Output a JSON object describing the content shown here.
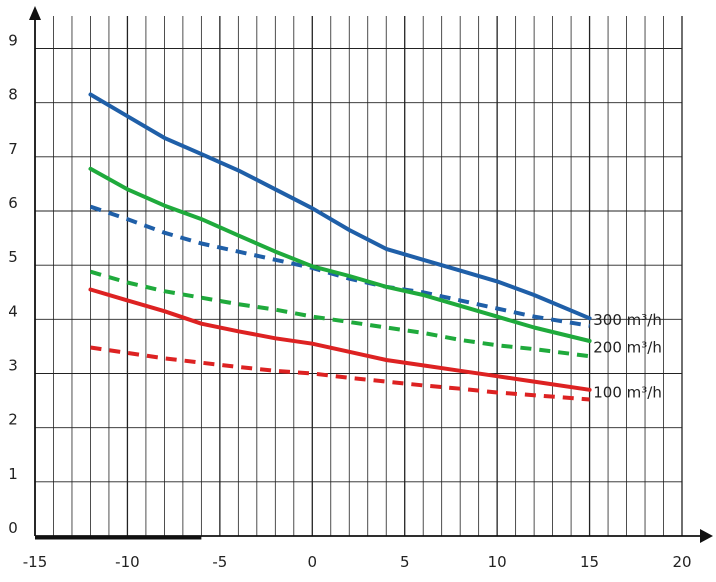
{
  "chart_data": {
    "type": "line",
    "title": "",
    "xlabel": "",
    "ylabel": "",
    "xlim": [
      -15,
      20
    ],
    "ylim": [
      0,
      9.6
    ],
    "x_ticks": [
      -15,
      -10,
      -5,
      0,
      5,
      10,
      15,
      20
    ],
    "x_tick_labels": [
      "-15",
      "-10",
      "-5",
      "0",
      "5",
      "10",
      "15",
      "20"
    ],
    "y_ticks": [
      0,
      1,
      2,
      3,
      4,
      5,
      6,
      7,
      8,
      9
    ],
    "y_tick_labels": [
      "0",
      "1",
      "2",
      "3",
      "4",
      "5",
      "6",
      "7",
      "8",
      "9"
    ],
    "grid": true,
    "colors": {
      "blue": "#1f5fa8",
      "green": "#1faa3c",
      "red": "#dd2222",
      "grid": "#222222",
      "axis": "#111111"
    },
    "series": [
      {
        "name": "300 m³/h",
        "color": "#1f5fa8",
        "style": "solid",
        "x": [
          -12,
          -10,
          -8,
          -6,
          -4,
          -2,
          0,
          2,
          4,
          6,
          8,
          10,
          12,
          15
        ],
        "y": [
          8.15,
          7.75,
          7.35,
          7.05,
          6.75,
          6.4,
          6.05,
          5.65,
          5.3,
          5.1,
          4.9,
          4.7,
          4.45,
          4.02
        ]
      },
      {
        "name": "300 m³/h",
        "color": "#1f5fa8",
        "style": "dashed",
        "x": [
          -12,
          -10,
          -8,
          -6,
          -4,
          -2,
          0,
          2,
          4,
          6,
          8,
          10,
          12,
          15
        ],
        "y": [
          6.08,
          5.85,
          5.6,
          5.4,
          5.25,
          5.1,
          4.95,
          4.75,
          4.6,
          4.5,
          4.35,
          4.2,
          4.05,
          3.88
        ]
      },
      {
        "name": "200 m³/h",
        "color": "#1faa3c",
        "style": "solid",
        "x": [
          -12,
          -10,
          -8,
          -6,
          -4,
          -2,
          0,
          2,
          4,
          6,
          8,
          10,
          12,
          15
        ],
        "y": [
          6.78,
          6.4,
          6.1,
          5.85,
          5.55,
          5.25,
          4.98,
          4.8,
          4.6,
          4.45,
          4.25,
          4.05,
          3.85,
          3.6
        ]
      },
      {
        "name": "200 m³/h",
        "color": "#1faa3c",
        "style": "dashed",
        "x": [
          -12,
          -10,
          -8,
          -6,
          -4,
          -2,
          0,
          2,
          4,
          6,
          8,
          10,
          12,
          15
        ],
        "y": [
          4.88,
          4.68,
          4.52,
          4.4,
          4.28,
          4.18,
          4.05,
          3.95,
          3.85,
          3.75,
          3.62,
          3.52,
          3.45,
          3.32
        ]
      },
      {
        "name": "100 m³/h",
        "color": "#dd2222",
        "style": "solid",
        "x": [
          -12,
          -10,
          -8,
          -6,
          -4,
          -2,
          0,
          2,
          4,
          6,
          8,
          10,
          12,
          15
        ],
        "y": [
          4.55,
          4.35,
          4.15,
          3.92,
          3.78,
          3.65,
          3.55,
          3.4,
          3.25,
          3.15,
          3.05,
          2.95,
          2.85,
          2.7
        ]
      },
      {
        "name": "100 m³/h",
        "color": "#dd2222",
        "style": "dashed",
        "x": [
          -12,
          -10,
          -8,
          -6,
          -4,
          -2,
          0,
          2,
          4,
          6,
          8,
          10,
          12,
          15
        ],
        "y": [
          3.48,
          3.38,
          3.28,
          3.2,
          3.12,
          3.05,
          3.0,
          2.92,
          2.85,
          2.78,
          2.72,
          2.65,
          2.6,
          2.52
        ]
      }
    ],
    "series_labels": [
      {
        "text": "300 m³/h",
        "x": 15.2,
        "y": 3.99
      },
      {
        "text": "200 m³/h",
        "x": 15.2,
        "y": 3.48
      },
      {
        "text": "100 m³/h",
        "x": 15.2,
        "y": 2.65
      }
    ]
  }
}
